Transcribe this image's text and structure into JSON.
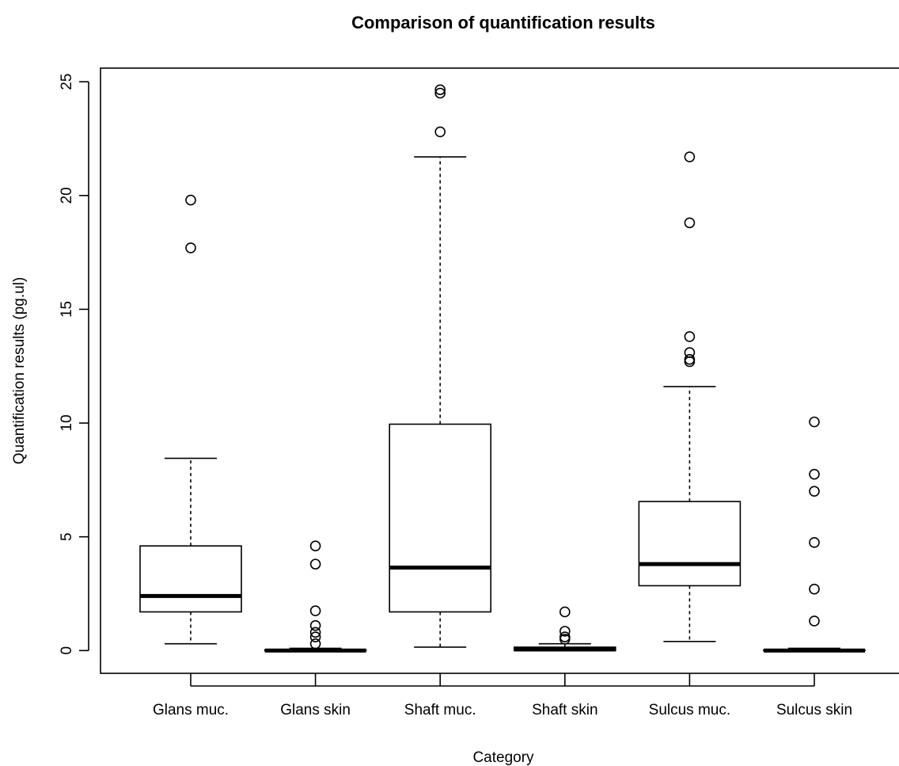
{
  "chart_data": {
    "type": "boxplot",
    "title": "Comparison of quantification results",
    "xlabel": "Category",
    "ylabel": "Quantification results (pg.ul)",
    "ylim": [
      -1,
      25.6
    ],
    "yticks": [
      0,
      5,
      10,
      15,
      20,
      25
    ],
    "grid": false,
    "legend": "none",
    "categories": [
      "Glans muc.",
      "Glans skin",
      "Shaft muc.",
      "Shaft skin",
      "Sulcus muc.",
      "Sulcus skin"
    ],
    "boxes": [
      {
        "category": "Glans muc.",
        "whisker_low": 0.3,
        "q1": 1.7,
        "median": 2.4,
        "q3": 4.6,
        "whisker_high": 8.45,
        "outliers": [
          17.7,
          19.8
        ]
      },
      {
        "category": "Glans skin",
        "whisker_low": 0.0,
        "q1": 0.0,
        "median": 0.0,
        "q3": 0.02,
        "whisker_high": 0.1,
        "outliers": [
          0.3,
          0.6,
          0.8,
          1.1,
          1.75,
          3.8,
          4.6
        ]
      },
      {
        "category": "Shaft muc.",
        "whisker_low": 0.15,
        "q1": 1.7,
        "median": 3.65,
        "q3": 9.95,
        "whisker_high": 21.7,
        "outliers": [
          22.8,
          24.5,
          24.65
        ]
      },
      {
        "category": "Shaft skin",
        "whisker_low": 0.0,
        "q1": 0.0,
        "median": 0.05,
        "q3": 0.15,
        "whisker_high": 0.3,
        "outliers": [
          0.5,
          0.6,
          0.85,
          1.7
        ]
      },
      {
        "category": "Sulcus muc.",
        "whisker_low": 0.4,
        "q1": 2.85,
        "median": 3.8,
        "q3": 6.55,
        "whisker_high": 11.6,
        "outliers": [
          12.7,
          12.8,
          13.1,
          13.8,
          18.8,
          21.7
        ]
      },
      {
        "category": "Sulcus skin",
        "whisker_low": 0.0,
        "q1": 0.0,
        "median": 0.0,
        "q3": 0.02,
        "whisker_high": 0.1,
        "outliers": [
          1.3,
          2.7,
          4.75,
          7.0,
          7.75,
          10.05
        ]
      }
    ]
  }
}
